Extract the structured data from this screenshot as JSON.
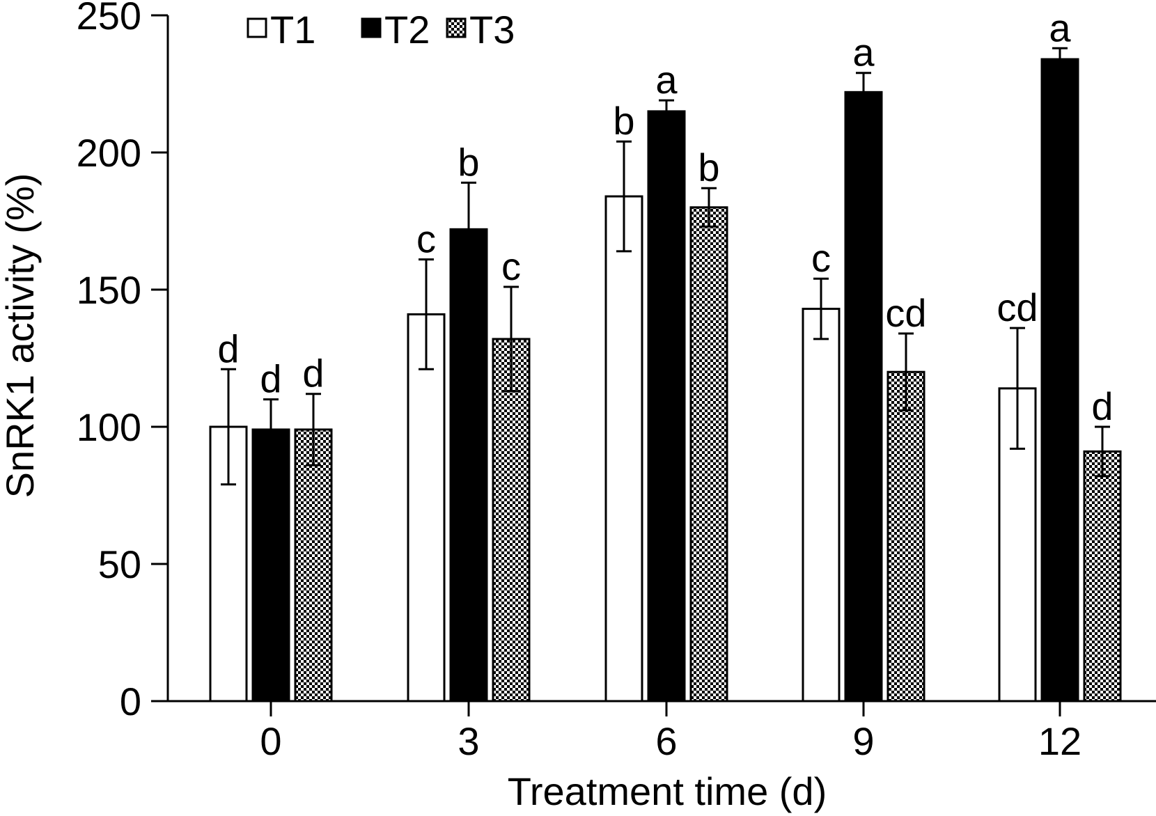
{
  "chart_data": {
    "type": "bar",
    "xlabel": "Treatment time (d)",
    "ylabel": "SnRK1 activity (%)",
    "ylim": [
      0,
      250
    ],
    "yticks": [
      "0",
      "50",
      "100",
      "150",
      "200",
      "250"
    ],
    "categories": [
      "0",
      "3",
      "6",
      "9",
      "12"
    ],
    "legend_position": "top-left",
    "grid": false,
    "series": [
      {
        "name": "T1",
        "fill": "white",
        "values": [
          100,
          141,
          184,
          143,
          114
        ],
        "errors": [
          21,
          20,
          20,
          11,
          22
        ],
        "labels": [
          "d",
          "c",
          "b",
          "c",
          "cd"
        ]
      },
      {
        "name": "T2",
        "fill": "black",
        "values": [
          99,
          172,
          215,
          222,
          234
        ],
        "errors": [
          11,
          17,
          4,
          7,
          4
        ],
        "labels": [
          "d",
          "b",
          "a",
          "a",
          "a"
        ]
      },
      {
        "name": "T3",
        "fill": "checker",
        "values": [
          99,
          132,
          180,
          120,
          91
        ],
        "errors": [
          13,
          19,
          7,
          14,
          9
        ],
        "labels": [
          "d",
          "c",
          "b",
          "cd",
          "d"
        ]
      }
    ]
  },
  "colors": {
    "axis": "#000000",
    "bar_outline": "#000000",
    "dark_fill": "#000000",
    "light_fill": "#ffffff"
  }
}
